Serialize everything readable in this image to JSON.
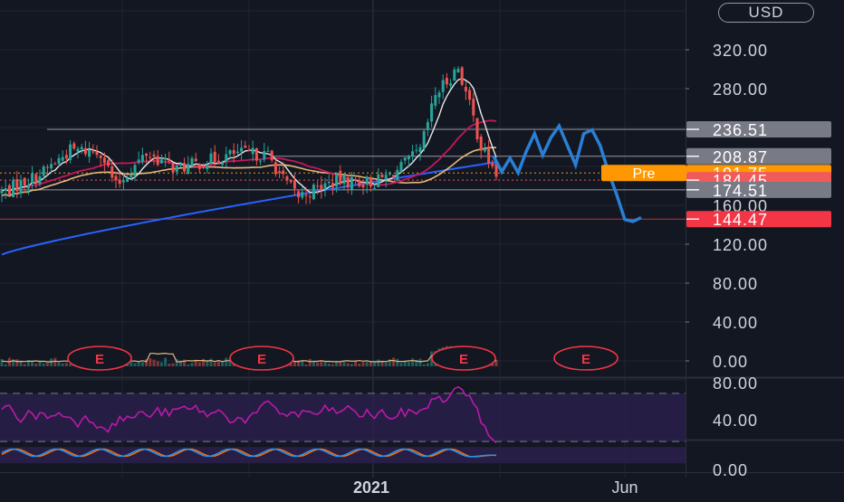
{
  "currency": {
    "label": "USD"
  },
  "colors": {
    "background": "#131722",
    "grid": "#1f2431",
    "up": "#26a69a",
    "down": "#ef5350",
    "sma_short": "#e8e8e8",
    "sma_mid": "#c2185b",
    "sma_long_orange": "#e7b77a",
    "sma_200": "#2962ff",
    "projection": "#2a7fd4",
    "rsi": "#b91aa8",
    "stoch_k": "#2196f3",
    "stoch_d": "#ff6d00",
    "band_fill": "#2a1f4a",
    "label_gray": "#787b86",
    "label_red": "#f23645",
    "label_orange": "#ff9800",
    "label_light_red": "#f05a5a"
  },
  "chart_data": {
    "type": "candlestick",
    "main_pane": {
      "y_ticks": [
        "320.00",
        "280.00",
        "120.00",
        "80.00",
        "40.00",
        "0.00"
      ],
      "price_labels": [
        {
          "text": "236.51",
          "value": 236.51,
          "style": "gray"
        },
        {
          "text": "208.87",
          "value": 208.87,
          "style": "gray"
        },
        {
          "text": "191.75",
          "value": 191.75,
          "style": "orange",
          "tag": "Pre"
        },
        {
          "text": "184.45",
          "value": 184.45,
          "style": "light-red"
        },
        {
          "text": "174.51",
          "value": 174.51,
          "style": "gray"
        },
        {
          "text": "144.47",
          "value": 144.47,
          "style": "red"
        }
      ],
      "partially_hidden_tick": "160.00",
      "horizontal_levels": [
        236.51,
        208.87,
        174.51,
        144.47
      ],
      "earnings_markers": [
        {
          "label": "E"
        },
        {
          "label": "E"
        },
        {
          "label": "E"
        },
        {
          "label": "E"
        }
      ],
      "projection_path": [
        209,
        193,
        207,
        192,
        214,
        232,
        210,
        228,
        240,
        220,
        200,
        232,
        236,
        220,
        193,
        170,
        144,
        142,
        146
      ]
    },
    "rsi_pane": {
      "y_ticks": [
        "80.00",
        "40.00"
      ],
      "upper_band": 70,
      "lower_band": 30
    },
    "stoch_pane": {
      "y_ticks": [
        "0.00"
      ],
      "upper_band": 80,
      "lower_band": 20
    },
    "x_labels": [
      "2021",
      "Jun"
    ]
  }
}
